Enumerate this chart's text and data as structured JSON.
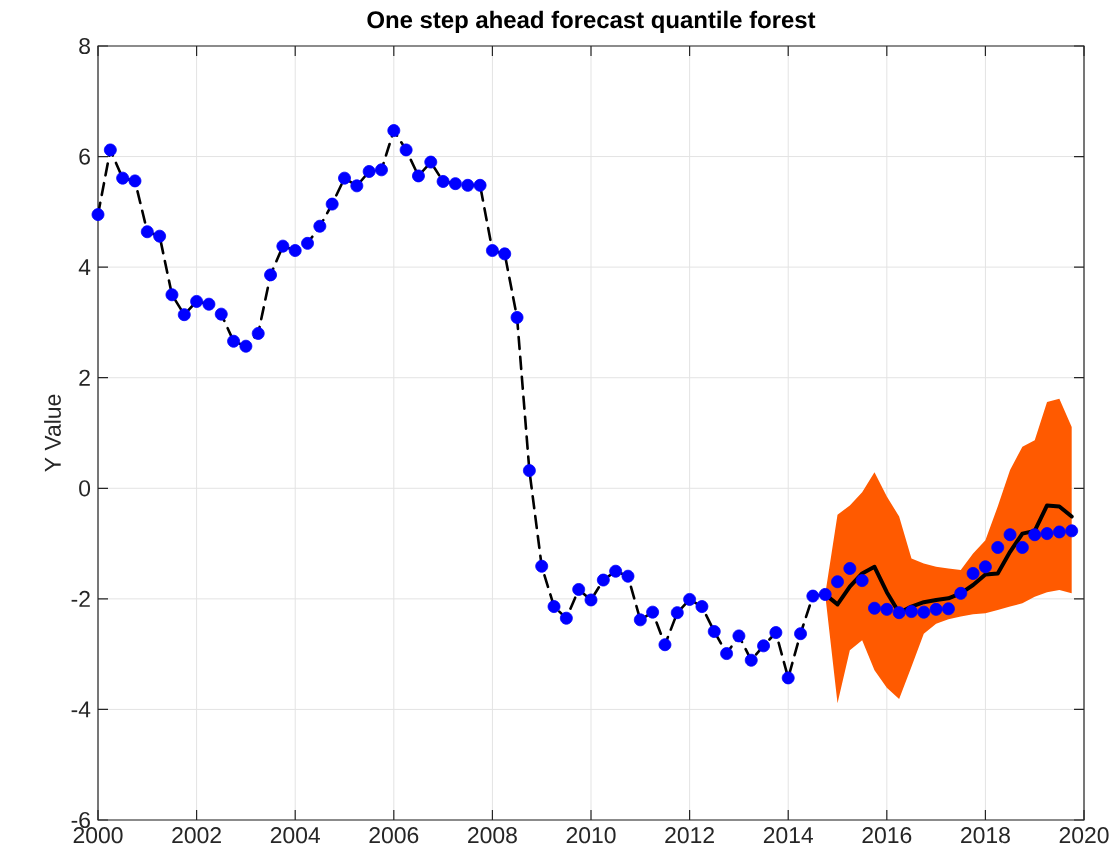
{
  "chart_data": {
    "type": "line",
    "title": "One step ahead forecast quantile forest",
    "ylabel": "Y Value",
    "xlim": [
      2000,
      2020
    ],
    "ylim": [
      -6,
      8
    ],
    "xticks": [
      2000,
      2002,
      2004,
      2006,
      2008,
      2010,
      2012,
      2014,
      2016,
      2018,
      2020
    ],
    "yticks": [
      -6,
      -4,
      -2,
      0,
      2,
      4,
      6,
      8
    ],
    "grid": true,
    "series": [
      {
        "type": "line",
        "color": "#000000",
        "line_style": "dashed",
        "marker": "none",
        "x": [
          2000,
          2000.25,
          2000.5,
          2000.75,
          2001,
          2001.25,
          2001.5,
          2001.75,
          2002,
          2002.25,
          2002.5,
          2002.75,
          2003,
          2003.25,
          2003.5,
          2003.75,
          2004,
          2004.25,
          2004.5,
          2004.75,
          2005,
          2005.25,
          2005.5,
          2005.75,
          2006,
          2006.25,
          2006.5,
          2006.75,
          2007,
          2007.25,
          2007.5,
          2007.75,
          2008,
          2008.25,
          2008.5,
          2008.75,
          2009,
          2009.25,
          2009.5,
          2009.75,
          2010,
          2010.25,
          2010.5,
          2010.75,
          2011,
          2011.25,
          2011.5,
          2011.75,
          2012,
          2012.25,
          2012.5,
          2012.75,
          2013,
          2013.25,
          2013.5,
          2013.75,
          2014,
          2014.25,
          2014.5,
          2014.75
        ],
        "values": [
          4.95,
          6.12,
          5.61,
          5.56,
          4.64,
          4.56,
          3.5,
          3.14,
          3.38,
          3.33,
          3.15,
          2.66,
          2.57,
          2.8,
          3.86,
          4.38,
          4.3,
          4.43,
          4.74,
          5.14,
          5.61,
          5.47,
          5.73,
          5.76,
          6.47,
          6.12,
          5.65,
          5.9,
          5.55,
          5.51,
          5.48,
          5.48,
          4.3,
          4.24,
          3.09,
          0.32,
          -1.41,
          -2.14,
          -2.35,
          -1.83,
          -2.02,
          -1.66,
          -1.5,
          -1.59,
          -2.38,
          -2.24,
          -2.83,
          -2.25,
          -2.01,
          -2.14,
          -2.59,
          -2.99,
          -2.67,
          -3.11,
          -2.85,
          -2.61,
          -3.43,
          -2.63,
          -1.95,
          -1.92
        ]
      },
      {
        "color": "#000000",
        "line_style": "solid",
        "marker": "none",
        "x": [
          2014.75,
          2015,
          2015.25,
          2015.5,
          2015.75,
          2016,
          2016.25,
          2016.5,
          2016.75,
          2017,
          2017.25,
          2017.5,
          2017.75,
          2018,
          2018.25,
          2018.5,
          2018.75,
          2019,
          2019.25,
          2019.5,
          2019.75
        ],
        "values": [
          -1.92,
          -2.1,
          -1.78,
          -1.54,
          -1.42,
          -1.88,
          -2.25,
          -2.14,
          -2.06,
          -2.02,
          -1.99,
          -1.9,
          -1.75,
          -1.56,
          -1.54,
          -1.15,
          -0.82,
          -0.77,
          -0.31,
          -0.33,
          -0.51
        ],
        "upper": [
          -1.92,
          -0.48,
          -0.31,
          -0.07,
          0.29,
          -0.15,
          -0.51,
          -1.27,
          -1.36,
          -1.42,
          -1.45,
          -1.48,
          -1.18,
          -0.94,
          -0.33,
          0.33,
          0.75,
          0.87,
          1.56,
          1.62,
          1.11
        ],
        "lower": [
          -1.92,
          -3.89,
          -2.93,
          -2.75,
          -3.29,
          -3.61,
          -3.81,
          -3.23,
          -2.63,
          -2.45,
          -2.37,
          -2.32,
          -2.28,
          -2.26,
          -2.2,
          -2.14,
          -2.08,
          -1.96,
          -1.88,
          -1.84,
          -1.9
        ]
      },
      {
        "type": "scatter",
        "color": "#0000ff",
        "marker": "circle",
        "x": [
          2000,
          2000.25,
          2000.5,
          2000.75,
          2001,
          2001.25,
          2001.5,
          2001.75,
          2002,
          2002.25,
          2002.5,
          2002.75,
          2003,
          2003.25,
          2003.5,
          2003.75,
          2004,
          2004.25,
          2004.5,
          2004.75,
          2005,
          2005.25,
          2005.5,
          2005.75,
          2006,
          2006.25,
          2006.5,
          2006.75,
          2007,
          2007.25,
          2007.5,
          2007.75,
          2008,
          2008.25,
          2008.5,
          2008.75,
          2009,
          2009.25,
          2009.5,
          2009.75,
          2010,
          2010.25,
          2010.5,
          2010.75,
          2011,
          2011.25,
          2011.5,
          2011.75,
          2012,
          2012.25,
          2012.5,
          2012.75,
          2013,
          2013.25,
          2013.5,
          2013.75,
          2014,
          2014.25,
          2014.5,
          2014.75,
          2015,
          2015.25,
          2015.5,
          2015.75,
          2016,
          2016.25,
          2016.5,
          2016.75,
          2017,
          2017.25,
          2017.5,
          2017.75,
          2018,
          2018.25,
          2018.5,
          2018.75,
          2019,
          2019.25,
          2019.5,
          2019.75
        ],
        "values": [
          4.95,
          6.12,
          5.61,
          5.56,
          4.64,
          4.56,
          3.5,
          3.14,
          3.38,
          3.33,
          3.15,
          2.66,
          2.57,
          2.8,
          3.86,
          4.38,
          4.3,
          4.43,
          4.74,
          5.14,
          5.61,
          5.47,
          5.73,
          5.76,
          6.47,
          6.12,
          5.65,
          5.9,
          5.55,
          5.51,
          5.48,
          5.48,
          4.3,
          4.24,
          3.09,
          0.32,
          -1.41,
          -2.14,
          -2.35,
          -1.83,
          -2.02,
          -1.66,
          -1.5,
          -1.59,
          -2.38,
          -2.24,
          -2.83,
          -2.25,
          -2.01,
          -2.14,
          -2.59,
          -2.99,
          -2.67,
          -3.11,
          -2.85,
          -2.61,
          -3.43,
          -2.63,
          -1.95,
          -1.92,
          -1.69,
          -1.45,
          -1.67,
          -2.17,
          -2.19,
          -2.25,
          -2.23,
          -2.24,
          -2.19,
          -2.18,
          -1.9,
          -1.54,
          -1.42,
          -1.07,
          -0.84,
          -1.07,
          -0.84,
          -0.82,
          -0.79,
          -0.77
        ]
      }
    ]
  }
}
